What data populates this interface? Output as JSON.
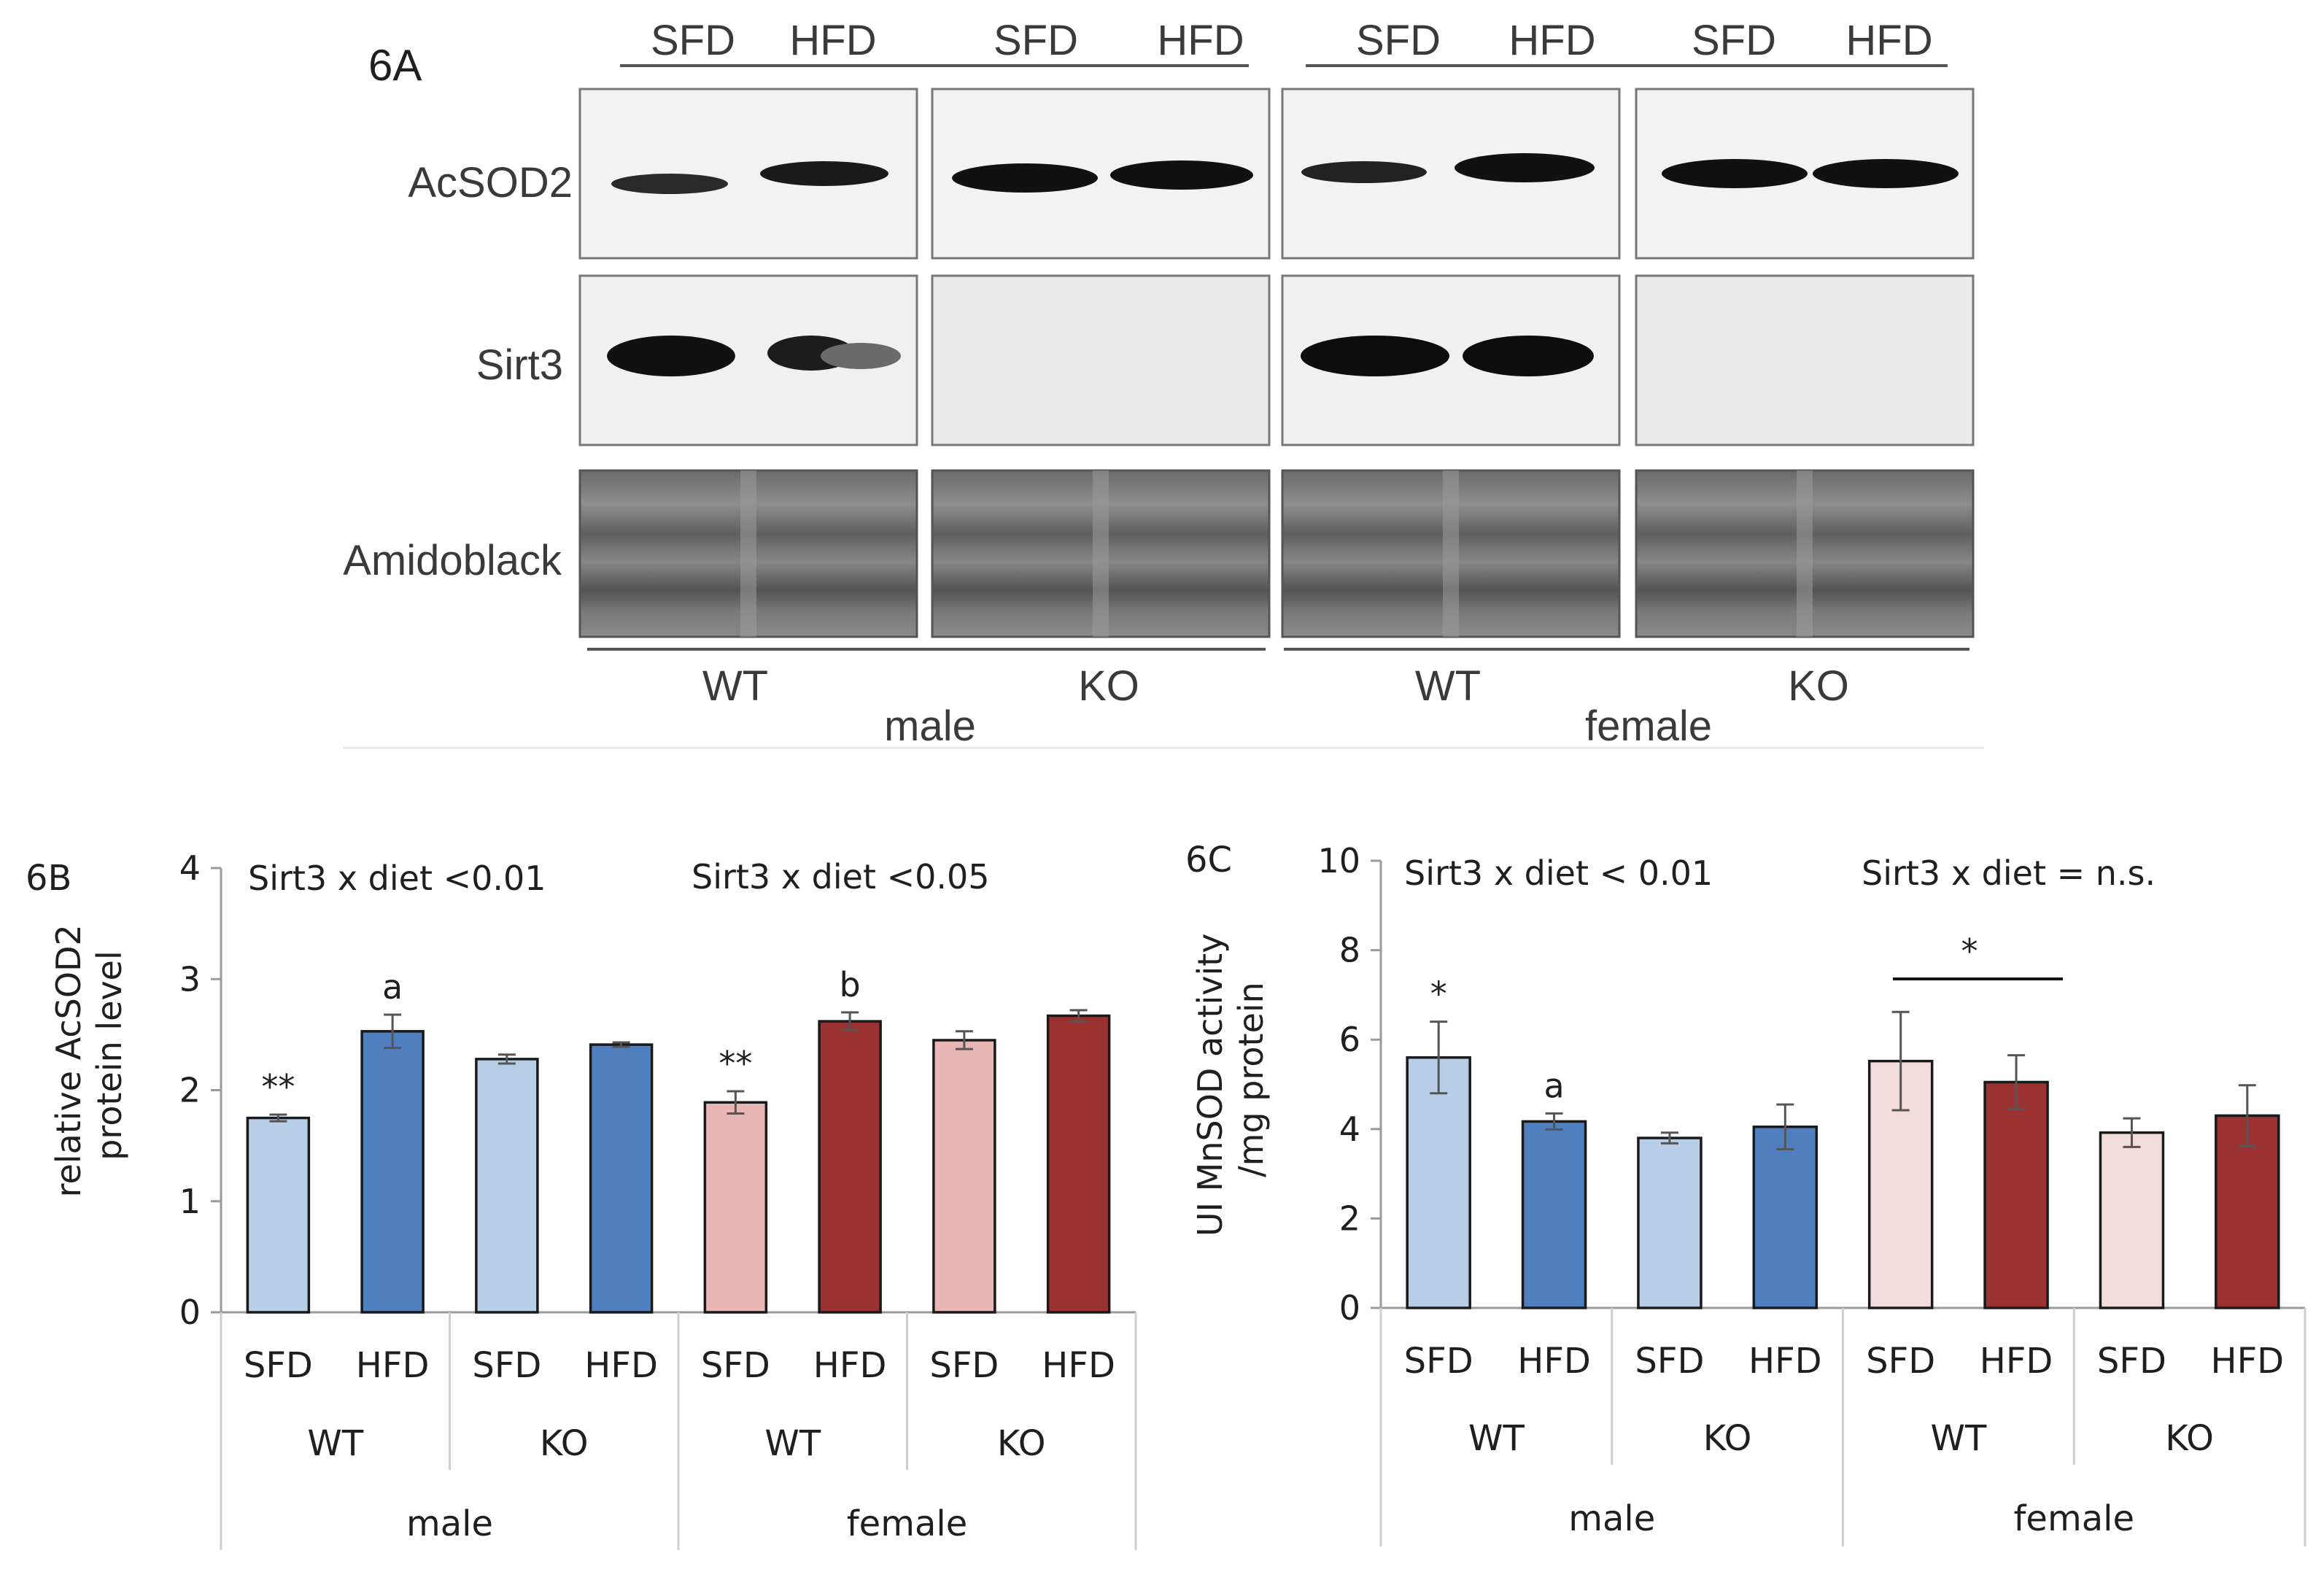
{
  "blot": {
    "panel_label": "6A",
    "lane_labels": [
      "SFD",
      "HFD",
      "SFD",
      "HFD",
      "SFD",
      "HFD",
      "SFD",
      "HFD"
    ],
    "row_labels": [
      "AcSOD2",
      "Sirt3",
      "Amidoblack"
    ],
    "genotype_labels": [
      "WT",
      "KO",
      "WT",
      "KO"
    ],
    "sex_labels": [
      "male",
      "female"
    ]
  },
  "chart_data": [
    {
      "type": "bar",
      "panel_label": "6B",
      "title": "",
      "ylabel": "relative AcSOD2 protein level",
      "ylabel_lines": [
        "relative AcSOD2",
        "protein level"
      ],
      "ylim": [
        0,
        4
      ],
      "yticks": [
        "0",
        "1",
        "2",
        "3",
        "4"
      ],
      "categories": [
        "SFD",
        "HFD",
        "SFD",
        "HFD",
        "SFD",
        "HFD",
        "SFD",
        "HFD"
      ],
      "genotype_labels": [
        "WT",
        "KO",
        "WT",
        "KO"
      ],
      "sex_labels": [
        "male",
        "female"
      ],
      "values": [
        1.75,
        2.53,
        2.28,
        2.41,
        1.89,
        2.62,
        2.45,
        2.67
      ],
      "errors": [
        0.03,
        0.15,
        0.04,
        0.02,
        0.1,
        0.08,
        0.08,
        0.05
      ],
      "bar_colors": [
        "#b8cde6",
        "#4f7fbf",
        "#b8cde6",
        "#4f7fbf",
        "#e8b7b5",
        "#9a3232",
        "#e8b7b5",
        "#9a3232"
      ],
      "bar_annotations": [
        "**",
        "a",
        "",
        "",
        "**",
        "b",
        "",
        ""
      ],
      "interaction_texts": [
        "Sirt3 x diet <0.01",
        "Sirt3 x diet <0.05"
      ],
      "grid": false
    },
    {
      "type": "bar",
      "panel_label": "6C",
      "title": "",
      "ylabel": "UI MnSOD activity /mg protein",
      "ylabel_lines": [
        "UI MnSOD activity",
        "/mg protein"
      ],
      "ylim": [
        0,
        10
      ],
      "yticks": [
        "0",
        "2",
        "4",
        "6",
        "8",
        "10"
      ],
      "categories": [
        "SFD",
        "HFD",
        "SFD",
        "HFD",
        "SFD",
        "HFD",
        "SFD",
        "HFD"
      ],
      "genotype_labels": [
        "WT",
        "KO",
        "WT",
        "KO"
      ],
      "sex_labels": [
        "male",
        "female"
      ],
      "values": [
        5.6,
        4.17,
        3.8,
        4.05,
        5.52,
        5.05,
        3.92,
        4.3
      ],
      "errors": [
        0.8,
        0.18,
        0.12,
        0.5,
        1.1,
        0.6,
        0.32,
        0.68
      ],
      "bar_colors": [
        "#b8cde6",
        "#4f7fbf",
        "#b8cde6",
        "#4f7fbf",
        "#f3dcdc",
        "#9a3232",
        "#f3dcdc",
        "#9a3232"
      ],
      "bar_annotations": [
        "*",
        "a",
        "",
        "",
        "",
        "",
        "",
        ""
      ],
      "interaction_texts": [
        "Sirt3 x diet < 0.01",
        "Sirt3 x diet = n.s."
      ],
      "bracket_label": "*",
      "grid": false
    }
  ]
}
